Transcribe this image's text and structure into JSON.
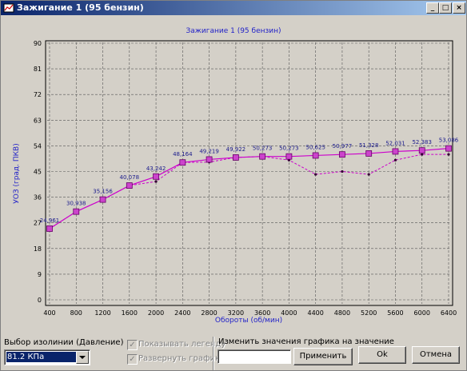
{
  "window": {
    "title": "Зажигание 1 (95 бензин)"
  },
  "chart_data": {
    "type": "line",
    "title": "Зажигание 1 (95 бензин)",
    "xlabel": "Обороты (об/мин)",
    "ylabel": "УОЗ (град. ПКВ)",
    "x": [
      400,
      800,
      1200,
      1600,
      2000,
      2400,
      2800,
      3200,
      3600,
      4000,
      4400,
      4800,
      5200,
      5600,
      6000,
      6400
    ],
    "x_ticks": [
      "400",
      "800",
      "1200",
      "1600",
      "2000",
      "2400",
      "2800",
      "3200",
      "3600",
      "4000",
      "4400",
      "4800",
      "5200",
      "5600",
      "6000",
      "6400"
    ],
    "y_ticks": [
      "0",
      "9",
      "18",
      "27",
      "36",
      "45",
      "54",
      "63",
      "72",
      "81",
      "90"
    ],
    "xlim": [
      400,
      6400
    ],
    "ylim": [
      0,
      90
    ],
    "grid": true,
    "series": [
      {
        "values": [
          24.961,
          30.938,
          35.156,
          40.078,
          43.242,
          48.164,
          49.219,
          49.922,
          50.273,
          50.273,
          50.625,
          50.977,
          51.328,
          52.031,
          52.383,
          53.086
        ],
        "labels": [
          "24,961",
          "30,938",
          "35,156",
          "40,078",
          "43,242",
          "48,164",
          "49,219",
          "49,922",
          "50,273",
          "50,273",
          "50,625",
          "50,977",
          "51,328",
          "52,031",
          "52,383",
          "53,086"
        ],
        "color": "#cc00cc",
        "style": "solid with square markers"
      },
      {
        "values": [
          24.961,
          30.938,
          35.156,
          40.078,
          41.5,
          48.164,
          48.3,
          49.922,
          50.273,
          49.0,
          44.0,
          45.0,
          44.0,
          49.0,
          51.0,
          51.0
        ],
        "color": "#cc00cc",
        "style": "dashed with dot markers"
      }
    ]
  },
  "bottom": {
    "isoline_label": "Выбор изолинии (Давление)",
    "isoline_value": "81.2 КПа",
    "show_legend": "Показывать легенду",
    "expand_chart": "Развернуть график",
    "change_label": "Изменить значения графика на значение",
    "change_value": "",
    "apply": "Применить",
    "ok": "Ok",
    "cancel": "Отмена"
  }
}
